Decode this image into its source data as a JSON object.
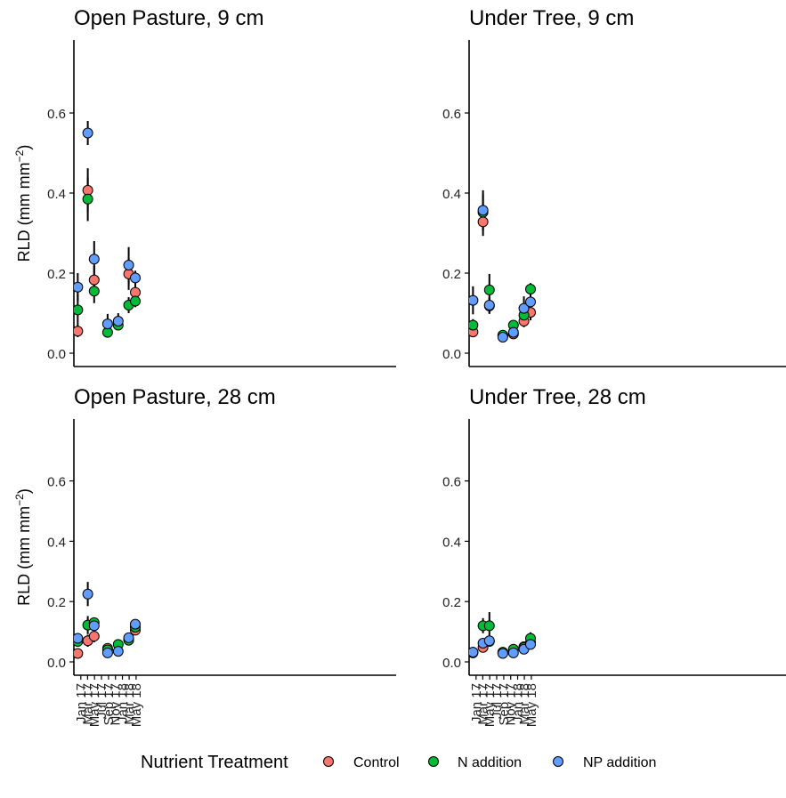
{
  "legend": {
    "title": "Nutrient Treatment",
    "items": [
      {
        "label": "Control",
        "color": "#F8766D"
      },
      {
        "label": "N addition",
        "color": "#00BA38"
      },
      {
        "label": "NP addition",
        "color": "#619CFF"
      }
    ]
  },
  "chart_data": [
    {
      "type": "scatter",
      "title": "Open Pasture, 9 cm",
      "ylabel_base": "RLD (mm mm",
      "ylabel_exp": "−2",
      "ylabel_close": ")",
      "ylim": [
        0,
        0.8
      ],
      "yticks": [
        0.0,
        0.2,
        0.4,
        0.6
      ],
      "ytick_labels": [
        "0.0",
        "0.2",
        "0.4",
        "0.6"
      ],
      "show_x_labels": false,
      "x_dates": [
        "2016-12-05",
        "2017-03-03",
        "2017-04-28",
        "2017-08-24",
        "2017-11-25",
        "2018-02-25",
        "2018-04-24"
      ],
      "series": [
        {
          "name": "Control",
          "color": "#F8766D",
          "values": [
            0.055,
            0.407,
            0.183,
            null,
            null,
            0.198,
            0.152
          ],
          "errors": [
            0.015,
            0.055,
            0.035,
            null,
            null,
            0.04,
            0.025
          ]
        },
        {
          "name": "N addition",
          "color": "#00BA38",
          "values": [
            0.108,
            0.385,
            0.155,
            0.052,
            0.07,
            0.12,
            0.13
          ],
          "errors": [
            0.04,
            0.055,
            0.03,
            0.01,
            0.01,
            0.02,
            0.015
          ]
        },
        {
          "name": "NP addition",
          "color": "#619CFF",
          "values": [
            0.165,
            0.55,
            0.235,
            0.073,
            0.08,
            0.22,
            0.188
          ],
          "errors": [
            0.035,
            0.03,
            0.045,
            0.025,
            0.02,
            0.045,
            0.018
          ]
        }
      ]
    },
    {
      "type": "scatter",
      "title": "Under Tree, 9 cm",
      "ylim": [
        0,
        0.8
      ],
      "yticks": [
        0.0,
        0.2,
        0.4,
        0.6
      ],
      "ytick_labels": [
        "0.0",
        "0.2",
        "0.4",
        "0.6"
      ],
      "show_x_labels": false,
      "x_dates": [
        "2016-12-05",
        "2017-03-03",
        "2017-04-28",
        "2017-08-24",
        "2017-11-25",
        "2018-02-25",
        "2018-04-24"
      ],
      "series": [
        {
          "name": "Control",
          "color": "#F8766D",
          "values": [
            0.053,
            0.328,
            0.118,
            0.043,
            0.048,
            0.08,
            0.102
          ],
          "errors": [
            0.01,
            0.035,
            0.02,
            0.005,
            0.008,
            0.015,
            0.02
          ]
        },
        {
          "name": "N addition",
          "color": "#00BA38",
          "values": [
            0.07,
            0.352,
            0.158,
            0.045,
            0.07,
            0.095,
            0.16
          ],
          "errors": [
            0.015,
            0.045,
            0.04,
            0.005,
            0.012,
            0.02,
            0.015
          ]
        },
        {
          "name": "NP addition",
          "color": "#619CFF",
          "values": [
            0.132,
            0.357,
            0.12,
            0.04,
            0.052,
            0.112,
            0.128
          ],
          "errors": [
            0.035,
            0.05,
            0.02,
            0.005,
            0.01,
            0.03,
            0.025
          ]
        }
      ]
    },
    {
      "type": "scatter",
      "title": "Open Pasture, 28 cm",
      "ylabel_base": "RLD (mm mm",
      "ylabel_exp": "−2",
      "ylabel_close": ")",
      "ylim": [
        0,
        0.8
      ],
      "yticks": [
        0.0,
        0.2,
        0.4,
        0.6
      ],
      "ytick_labels": [
        "0.0",
        "0.2",
        "0.4",
        "0.6"
      ],
      "show_x_labels": true,
      "xtick_dates": [
        "2017-01-01",
        "2017-03-01",
        "2017-05-01",
        "2017-07-01",
        "2017-09-01",
        "2017-11-01",
        "2018-01-01",
        "2018-03-01",
        "2018-05-01"
      ],
      "xtick_labels": [
        "Jan 17",
        "Mar 17",
        "May 17",
        "Jul 17",
        "Sep 17",
        "Nov 17",
        "Jan 18",
        "Mar 18",
        "May 18"
      ],
      "x_dates": [
        "2016-12-05",
        "2017-03-03",
        "2017-04-28",
        "2017-08-24",
        "2017-11-25",
        "2018-02-25",
        "2018-04-24"
      ],
      "series": [
        {
          "name": "Control",
          "color": "#F8766D",
          "values": [
            0.028,
            0.07,
            0.085,
            0.045,
            null,
            0.075,
            0.105
          ],
          "errors": [
            0.005,
            0.02,
            0.02,
            0.008,
            null,
            0.01,
            0.015
          ]
        },
        {
          "name": "N addition",
          "color": "#00BA38",
          "values": [
            0.068,
            0.122,
            0.13,
            0.04,
            0.058,
            0.072,
            0.115
          ],
          "errors": [
            0.01,
            0.03,
            0.015,
            0.005,
            0.01,
            0.01,
            0.015
          ]
        },
        {
          "name": "NP addition",
          "color": "#619CFF",
          "values": [
            0.078,
            0.225,
            0.12,
            0.03,
            0.035,
            0.08,
            0.125
          ],
          "errors": [
            0.015,
            0.04,
            0.02,
            0.005,
            0.005,
            0.01,
            0.015
          ]
        }
      ]
    },
    {
      "type": "scatter",
      "title": "Under Tree, 28 cm",
      "ylim": [
        0,
        0.8
      ],
      "yticks": [
        0.0,
        0.2,
        0.4,
        0.6
      ],
      "ytick_labels": [
        "0.0",
        "0.2",
        "0.4",
        "0.6"
      ],
      "show_x_labels": true,
      "xtick_dates": [
        "2017-01-01",
        "2017-03-01",
        "2017-05-01",
        "2017-07-01",
        "2017-09-01",
        "2017-11-01",
        "2018-01-01",
        "2018-03-01",
        "2018-05-01"
      ],
      "xtick_labels": [
        "Jan 17",
        "Mar 17",
        "May 17",
        "Jul 17",
        "Sep 17",
        "Nov 17",
        "Jan 18",
        "Mar 18",
        "May 18"
      ],
      "x_dates": [
        "2016-12-05",
        "2017-03-03",
        "2017-04-28",
        "2017-08-24",
        "2017-11-25",
        "2018-02-25",
        "2018-04-24"
      ],
      "series": [
        {
          "name": "Control",
          "color": "#F8766D",
          "values": [
            0.03,
            0.048,
            0.068,
            0.03,
            0.04,
            0.05,
            0.065
          ],
          "errors": [
            0.005,
            0.008,
            0.01,
            0.005,
            0.005,
            0.008,
            0.01
          ]
        },
        {
          "name": "N addition",
          "color": "#00BA38",
          "values": [
            0.032,
            0.12,
            0.12,
            0.032,
            0.042,
            0.048,
            0.078
          ],
          "errors": [
            0.005,
            0.025,
            0.045,
            0.005,
            0.005,
            0.008,
            0.02
          ]
        },
        {
          "name": "NP addition",
          "color": "#619CFF",
          "values": [
            0.032,
            0.062,
            0.07,
            0.028,
            0.03,
            0.042,
            0.058
          ],
          "errors": [
            0.005,
            0.01,
            0.015,
            0.005,
            0.005,
            0.008,
            0.01
          ]
        }
      ]
    }
  ]
}
